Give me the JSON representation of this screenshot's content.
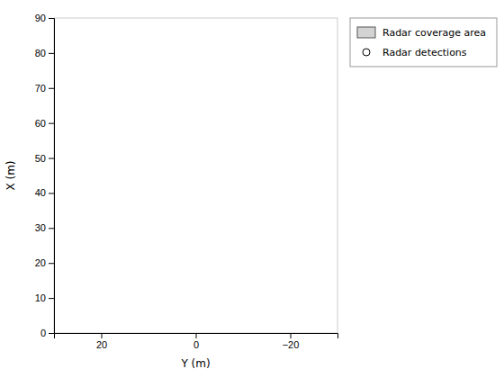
{
  "chart_data": {
    "type": "scatter",
    "xlabel": "Y (m)",
    "ylabel": "X (m)",
    "xlim": [
      30,
      -30
    ],
    "ylim": [
      0,
      90
    ],
    "xticks": [
      20,
      0,
      {
        "value": -20,
        "label": "−20"
      }
    ],
    "yticks": [
      0,
      10,
      20,
      30,
      40,
      50,
      60,
      70,
      80,
      90
    ],
    "grid": false,
    "legend": "right",
    "series": [
      {
        "name": "Radar coverage area",
        "type": "area",
        "color": "#d3d3d3",
        "x": [],
        "values": []
      },
      {
        "name": "Radar detections",
        "type": "scatter",
        "marker": "circle",
        "color": "#000000",
        "x": [],
        "values": []
      }
    ]
  }
}
